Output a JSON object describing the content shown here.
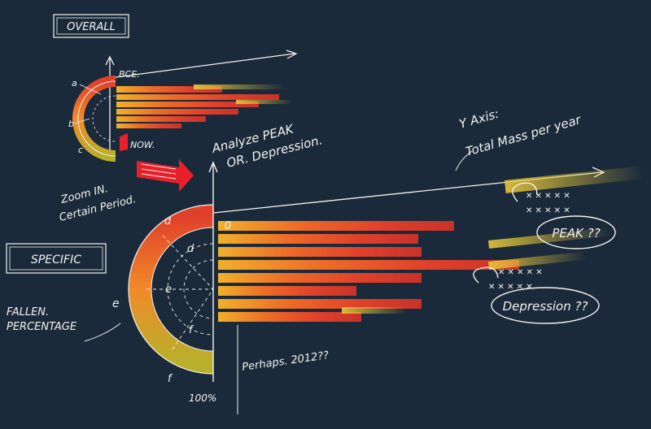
{
  "labels": {
    "overall": "OVERALL",
    "specific": "SPECIFIC",
    "bce": "BCE.",
    "now": "NOW.",
    "analyze_line1": "Analyze PEAK",
    "analyze_line2": "OR. Depression.",
    "zoom_line1": "Zoom IN.",
    "zoom_line2": "Certain Period.",
    "y_axis_line1": "Y Axis:",
    "y_axis_line2": "Total Mass per year",
    "peak": "PEAK ??",
    "depression": "Depression ??",
    "fallen_line1": "FALLEN.",
    "fallen_line2": "PERCENTAGE",
    "perhaps": "Perhaps. 2012??",
    "hundred_pct": "100%",
    "zero": "0",
    "letter_a": "a",
    "letter_b": "b",
    "letter_c": "c",
    "letter_d": "d",
    "letter_e": "e",
    "letter_f": "f"
  },
  "colors": {
    "background": "#1b2a3b",
    "ink": "#f2f2ee",
    "bar_red": "#e0402a",
    "bar_orange": "#f08a2a",
    "bar_yellow": "#e8d23a",
    "highlight_red": "#e8202a"
  }
}
